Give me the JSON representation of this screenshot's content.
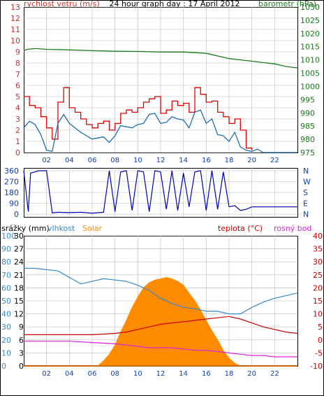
{
  "title": "24 hour graph day : 17 April 2012",
  "colors": {
    "wind": "#e00000",
    "wind_avg": "#1f6fb0",
    "baro": "#1a7a1a",
    "dir": "#0000bb",
    "humidity": "#3b88c8",
    "solar": "#ff8c00",
    "temp": "#cc0000",
    "dew": "#dd22dd",
    "rain": "#cc6600",
    "grid": "#bcbcbc",
    "left_axis": "#d03030",
    "right_axis": "#1a7a1a",
    "blue_axis": "#1040b0",
    "rain_axis": "#000000",
    "solar_axis": "#b86a00",
    "temp_axis": "#cc0000"
  },
  "x_ticks": [
    "02",
    "04",
    "06",
    "08",
    "10",
    "12",
    "14",
    "16",
    "18",
    "20",
    "22"
  ],
  "chart_data": [
    {
      "type": "line",
      "title": "24 hour graph day : 17 April 2012",
      "left_label": "rychlost vetru (m/s)",
      "right_label": "barometr (hPa)",
      "x_range": [
        0,
        24
      ],
      "y_left_range": [
        0,
        13
      ],
      "y_right_range": [
        975,
        1030
      ],
      "y_left_ticks": [
        "0",
        "1",
        "2",
        "3",
        "4",
        "5",
        "6",
        "7",
        "8",
        "9",
        "10",
        "11",
        "12",
        "13"
      ],
      "y_right_ticks": [
        "975",
        "980",
        "985",
        "990",
        "995",
        "1000",
        "1005",
        "1010",
        "1015",
        "1020",
        "1025",
        "1030"
      ],
      "series": [
        {
          "key": "gust",
          "axis": "left",
          "x": [
            0,
            0.5,
            1,
            1.5,
            2,
            2.5,
            3,
            3.5,
            4,
            4.5,
            5,
            5.5,
            6,
            6.5,
            7,
            7.5,
            8,
            8.5,
            9,
            9.5,
            10,
            10.5,
            11,
            11.5,
            12,
            12.5,
            13,
            13.5,
            14,
            14.5,
            15,
            15.5,
            16,
            16.5,
            17,
            17.5,
            18,
            18.5,
            19,
            19.5,
            20
          ],
          "y": [
            5.0,
            4.2,
            4.0,
            3.2,
            2.2,
            1.2,
            4.5,
            5.8,
            4.0,
            3.6,
            3.0,
            2.5,
            2.2,
            2.6,
            2.8,
            2.0,
            2.6,
            3.5,
            3.8,
            3.6,
            4.0,
            4.5,
            4.8,
            5.0,
            3.5,
            3.8,
            4.6,
            4.2,
            4.4,
            3.6,
            5.8,
            5.2,
            4.5,
            4.6,
            3.6,
            3.2,
            2.6,
            3.0,
            2.0,
            0.4,
            0.2
          ]
        },
        {
          "key": "wind",
          "axis": "left",
          "x": [
            0,
            0.5,
            1,
            1.5,
            2,
            2.5,
            3,
            3.5,
            4,
            4.5,
            5,
            5.5,
            6,
            6.5,
            7,
            7.5,
            8,
            8.5,
            9,
            9.5,
            10,
            10.5,
            11,
            11.5,
            12,
            12.5,
            13,
            13.5,
            14,
            14.5,
            15,
            15.5,
            16,
            16.5,
            17,
            17.5,
            18,
            18.5,
            19,
            19.5,
            20,
            20.5,
            21,
            22,
            23,
            24
          ],
          "y": [
            2.2,
            2.8,
            2.5,
            1.6,
            0.2,
            0.1,
            2.6,
            3.4,
            2.6,
            2.2,
            1.8,
            1.5,
            1.2,
            1.3,
            1.4,
            0.9,
            1.5,
            2.4,
            2.3,
            2.2,
            2.5,
            2.6,
            3.4,
            3.5,
            2.6,
            2.7,
            3.2,
            3.0,
            2.9,
            2.2,
            3.6,
            3.8,
            2.6,
            3.0,
            1.6,
            1.5,
            1.0,
            1.8,
            0.5,
            0.2,
            0.1,
            0.3,
            0,
            0,
            0,
            0
          ]
        },
        {
          "key": "baro",
          "axis": "right",
          "x": [
            0,
            0.3,
            1.0,
            2.0,
            4.0,
            6.0,
            8.0,
            10.0,
            12.0,
            14.0,
            16.0,
            18.0,
            19.0,
            20.0,
            22.0,
            23.0,
            24.0
          ],
          "y": [
            1013.5,
            1014.0,
            1014.3,
            1014.0,
            1013.8,
            1013.5,
            1013.3,
            1013.2,
            1013.0,
            1013.0,
            1012.5,
            1010.5,
            1010.0,
            1009.5,
            1008.5,
            1007.5,
            1007.0
          ]
        }
      ]
    },
    {
      "type": "line",
      "left_ticks": [
        "0",
        "90",
        "180",
        "270",
        "360"
      ],
      "right_ticks": [
        "N",
        "E",
        "S",
        "W",
        "N"
      ],
      "y_range": [
        0,
        360
      ],
      "series": [
        {
          "key": "dir",
          "x": [
            0,
            0.4,
            0.6,
            1.0,
            1.3,
            2.0,
            2.5,
            3.0,
            4.0,
            5.0,
            6.0,
            7.0,
            7.5,
            8.0,
            8.5,
            9.0,
            9.5,
            10.0,
            10.5,
            11.0,
            11.5,
            12.0,
            12.5,
            13.0,
            13.5,
            14.0,
            14.5,
            15.0,
            15.5,
            16.0,
            16.5,
            17.0,
            17.5,
            18.0,
            18.5,
            19.0,
            19.5,
            20.0,
            21.0,
            22.0,
            24.0
          ],
          "y": [
            360,
            20,
            340,
            350,
            360,
            360,
            10,
            15,
            12,
            15,
            8,
            15,
            360,
            20,
            350,
            360,
            30,
            360,
            350,
            20,
            360,
            350,
            40,
            360,
            30,
            340,
            60,
            350,
            360,
            30,
            360,
            40,
            350,
            60,
            70,
            30,
            40,
            60,
            60,
            60,
            60
          ]
        }
      ]
    },
    {
      "type": "line",
      "left_labels": [
        "srážky (mm)",
        "vlhkost",
        "Solar"
      ],
      "right_labels": [
        "teplota (°C)",
        "rosný bod"
      ],
      "x_range": [
        0,
        24
      ],
      "rain_ticks": [
        "0",
        "3",
        "6",
        "9",
        "12",
        "15",
        "18",
        "21",
        "24",
        "27",
        "30"
      ],
      "rain_range": [
        0,
        30
      ],
      "humidity_ticks": [
        "0",
        "10",
        "20",
        "30",
        "40",
        "50",
        "60",
        "70",
        "80",
        "90",
        "100"
      ],
      "humidity_range": [
        0,
        100
      ],
      "solar_ticks": [
        "0",
        "100",
        "200",
        "300",
        "400",
        "500",
        "600",
        "700",
        "800",
        "900",
        "1000"
      ],
      "solar_range": [
        0,
        1000
      ],
      "temp_ticks": [
        "-10",
        "-5",
        "0",
        "5",
        "10",
        "15",
        "20",
        "25",
        "30",
        "35",
        "40"
      ],
      "temp_range": [
        -10,
        40
      ],
      "series": [
        {
          "key": "solar",
          "axis": "solar",
          "x": [
            0,
            6.5,
            7.0,
            7.5,
            8.0,
            8.5,
            9.0,
            9.5,
            10.0,
            10.5,
            11.0,
            11.5,
            12.0,
            12.5,
            13.0,
            13.5,
            14.0,
            14.5,
            15.0,
            15.5,
            16.0,
            16.5,
            17.0,
            17.5,
            18.0,
            18.5,
            19.0,
            24
          ],
          "y": [
            0,
            0,
            40,
            90,
            160,
            260,
            350,
            450,
            530,
            600,
            640,
            660,
            670,
            680,
            670,
            650,
            620,
            560,
            500,
            430,
            350,
            270,
            200,
            120,
            60,
            20,
            0,
            0
          ]
        },
        {
          "key": "humidity",
          "axis": "humidity",
          "x": [
            0,
            1,
            2,
            3,
            4,
            5,
            6,
            7,
            8,
            9,
            10,
            11,
            12,
            13,
            14,
            15,
            16,
            17,
            18,
            19,
            20,
            21,
            22,
            23,
            24
          ],
          "y": [
            75,
            75,
            74,
            73,
            68,
            63,
            65,
            67,
            66,
            65,
            62,
            58,
            52,
            48,
            45,
            44,
            42,
            42,
            40,
            40,
            45,
            49,
            52,
            54,
            56
          ]
        },
        {
          "key": "temp",
          "axis": "temp",
          "x": [
            0,
            2,
            4,
            6,
            8,
            9,
            10,
            11,
            12,
            13,
            14,
            15,
            16,
            17,
            18,
            19,
            20,
            21,
            22,
            23,
            24
          ],
          "y": [
            2,
            2,
            2,
            2,
            2.5,
            3,
            4,
            5,
            6,
            6.5,
            7,
            7.5,
            8,
            8.5,
            9,
            8,
            6.5,
            5,
            4,
            3,
            2.5
          ]
        },
        {
          "key": "dew",
          "axis": "temp",
          "x": [
            0,
            2,
            4,
            6,
            8,
            9,
            10,
            11,
            12,
            13,
            14,
            15,
            16,
            17,
            18,
            19,
            20,
            21,
            22,
            23,
            24
          ],
          "y": [
            -0.5,
            -0.5,
            -0.5,
            -1,
            -1.5,
            -2,
            -2.5,
            -3,
            -3,
            -3,
            -3.5,
            -4,
            -4,
            -4.5,
            -5,
            -5.5,
            -6,
            -6,
            -6.5,
            -6.5,
            -6.5
          ]
        },
        {
          "key": "rain",
          "axis": "rain",
          "x": [
            0,
            24
          ],
          "y": [
            0,
            0
          ]
        }
      ]
    }
  ]
}
